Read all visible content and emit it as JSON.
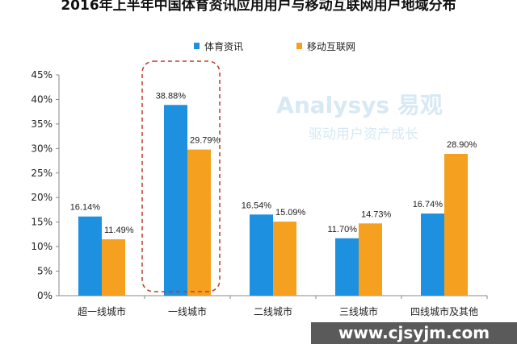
{
  "chart_data": {
    "type": "bar",
    "title": "2016年上半年中国体育资讯应用用户与移动互联网用户地域分布",
    "categories": [
      "超一线城市",
      "一线城市",
      "二线城市",
      "三线城市",
      "四线城市及其他"
    ],
    "series": [
      {
        "name": "体育资讯",
        "color": "#1e90e0",
        "values": [
          16.14,
          38.88,
          16.54,
          11.7,
          16.74
        ],
        "labels": [
          "16.14%",
          "38.88%",
          "16.54%",
          "11.70%",
          "16.74%"
        ]
      },
      {
        "name": "移动互联网",
        "color": "#f5a01e",
        "values": [
          11.49,
          29.79,
          15.09,
          14.73,
          28.9
        ],
        "labels": [
          "11.49%",
          "29.79%",
          "15.09%",
          "14.73%",
          "28.90%"
        ]
      }
    ],
    "ylim": [
      0,
      45
    ],
    "yticks": [
      "0%",
      "5%",
      "10%",
      "15%",
      "20%",
      "25%",
      "30%",
      "35%",
      "40%",
      "45%"
    ],
    "grid": false,
    "legend": "top",
    "highlight": {
      "category": "一线城市",
      "style": "red dashed rounded box"
    }
  },
  "watermark": {
    "logo": "Analysys 易观",
    "slogan": "驱动用户资产成长",
    "site": "www.cjsyjm.com"
  }
}
